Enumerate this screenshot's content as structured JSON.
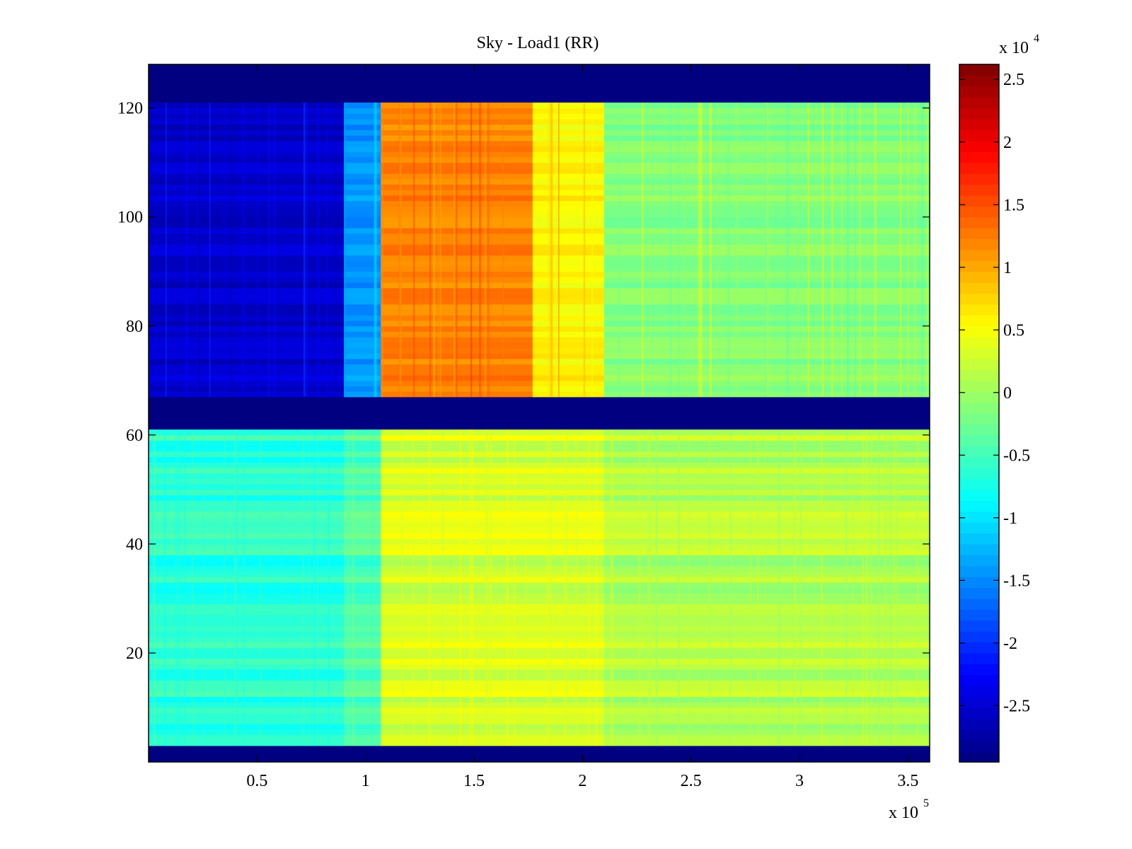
{
  "chart_data": {
    "type": "heatmap",
    "title": "Sky - Load1 (RR)",
    "xlabel": "",
    "ylabel": "",
    "colormap": "jet",
    "x_multiplier": "x 10",
    "x_multiplier_exp": "5",
    "colorbar_multiplier": "x 10",
    "colorbar_multiplier_exp": "4",
    "xlim": [
      0,
      3.6
    ],
    "ylim": [
      0,
      128
    ],
    "clim": [
      -2.95,
      2.62
    ],
    "xticks": [
      0.5,
      1,
      1.5,
      2,
      2.5,
      3,
      3.5
    ],
    "xtick_labels": [
      "0.5",
      "1",
      "1.5",
      "2",
      "2.5",
      "3",
      "3.5"
    ],
    "yticks": [
      20,
      40,
      60,
      80,
      100,
      120
    ],
    "ytick_labels": [
      "20",
      "40",
      "60",
      "80",
      "100",
      "120"
    ],
    "cticks": [
      -2.5,
      -2,
      -1.5,
      -1,
      -0.5,
      0,
      0.5,
      1,
      1.5,
      2,
      2.5
    ],
    "ctick_labels": [
      "-2.5",
      "-2",
      "-1.5",
      "-1",
      "-0.5",
      "0",
      "0.5",
      "1",
      "1.5",
      "2",
      "2.5"
    ],
    "masked_value": -2.95,
    "masked_rows": [
      [
        0,
        3
      ],
      [
        61,
        67
      ],
      [
        121,
        128
      ]
    ],
    "upper_band": {
      "rows": [
        67,
        121
      ],
      "segments": [
        {
          "x": [
            0,
            0.9
          ],
          "value": -2.55
        },
        {
          "x": [
            0.9,
            1.07
          ],
          "value": -1.45
        },
        {
          "x": [
            1.07,
            1.77
          ],
          "value": 1.2
        },
        {
          "x": [
            1.77,
            2.1
          ],
          "value": 0.55
        },
        {
          "x": [
            2.1,
            3.6
          ],
          "value": -0.15
        }
      ]
    },
    "lower_band": {
      "rows": [
        3,
        61
      ],
      "segments": [
        {
          "x": [
            0,
            0.9
          ],
          "value": -0.65
        },
        {
          "x": [
            0.9,
            1.07
          ],
          "value": -0.45
        },
        {
          "x": [
            1.07,
            2.1
          ],
          "value": 0.3
        },
        {
          "x": [
            2.1,
            3.6
          ],
          "value": 0.1
        }
      ]
    }
  }
}
